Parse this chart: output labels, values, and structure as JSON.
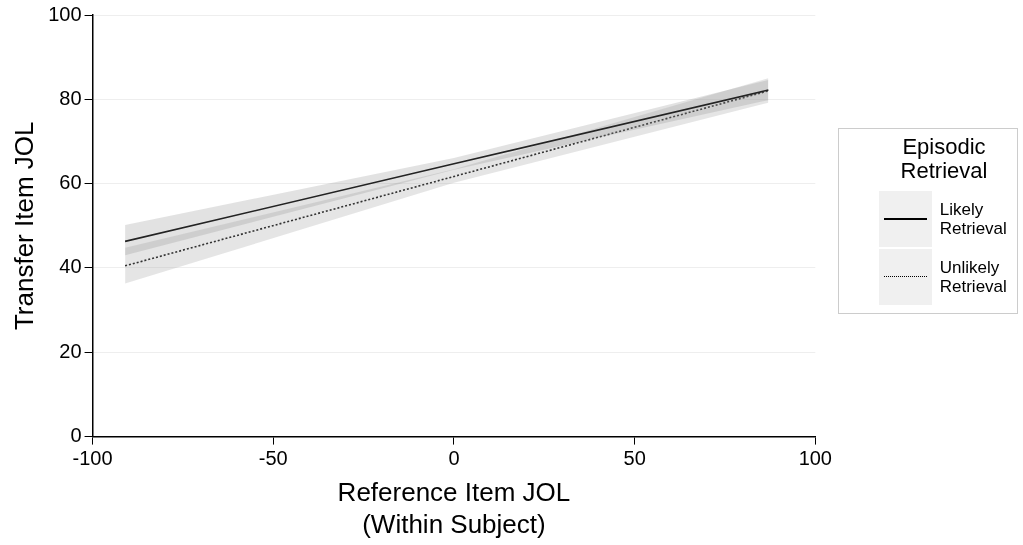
{
  "chart_data": {
    "type": "line",
    "xlabel": "Reference Item JOL\n(Within Subject)",
    "ylabel": "Transfer Item JOL",
    "legend_title": "Episodic Retrieval",
    "legend": "right",
    "grid": "y",
    "marker": "none",
    "xlim": [
      -100,
      100
    ],
    "xticks": [
      -100,
      -50,
      0,
      50,
      100
    ],
    "ylim": [
      0,
      100
    ],
    "yticks": [
      0,
      20,
      40,
      60,
      80,
      100
    ],
    "series": [
      {
        "name": "Likely Retrieval",
        "color": "#000000",
        "line_style": "solid",
        "x": [
          -91,
          0,
          87
        ],
        "values": [
          46.3,
          64.7,
          82.2
        ],
        "lower": [
          43,
          63.3,
          79.8
        ],
        "upper": [
          50.2,
          66.1,
          84.6
        ]
      },
      {
        "name": "Unlikely Retrieval",
        "color": "#000000",
        "line_style": "dotted",
        "x": [
          -91,
          0,
          87
        ],
        "values": [
          40.5,
          61.7,
          82
        ],
        "lower": [
          36.3,
          60.2,
          79.2
        ],
        "upper": [
          44.8,
          63.4,
          85
        ]
      }
    ]
  }
}
